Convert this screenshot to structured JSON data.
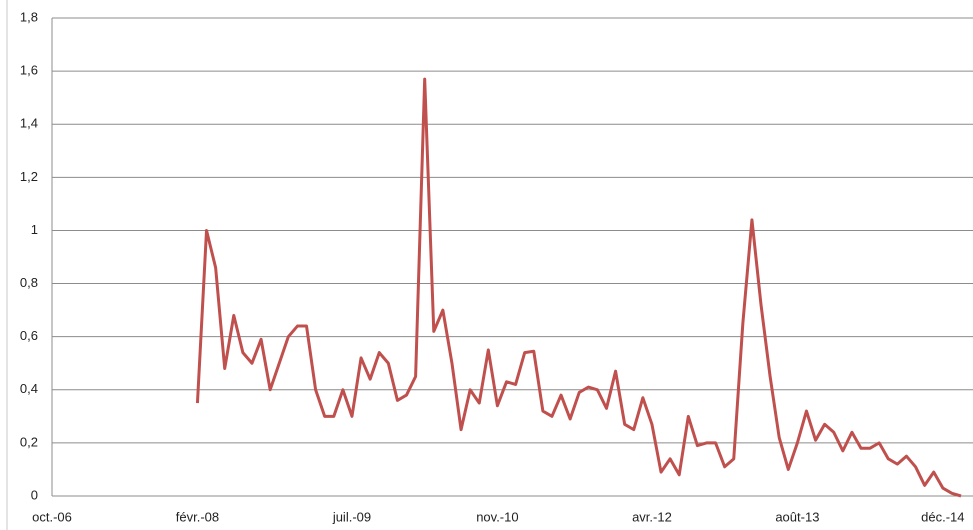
{
  "chart_data": {
    "type": "line",
    "color": "#c0504d",
    "grid": true,
    "categories": [
      "oct.-06",
      null,
      null,
      null,
      null,
      null,
      null,
      null,
      null,
      null,
      null,
      null,
      null,
      null,
      null,
      null,
      "févr.-08",
      null,
      null,
      null,
      null,
      null,
      null,
      null,
      null,
      null,
      null,
      null,
      null,
      null,
      null,
      null,
      null,
      "juil.-09",
      null,
      null,
      null,
      null,
      null,
      null,
      null,
      null,
      null,
      null,
      null,
      null,
      null,
      null,
      null,
      "nov.-10",
      null,
      null,
      null,
      null,
      null,
      null,
      null,
      null,
      null,
      null,
      null,
      null,
      null,
      null,
      null,
      null,
      "avr.-12",
      null,
      null,
      null,
      null,
      null,
      null,
      null,
      null,
      null,
      null,
      null,
      null,
      null,
      null,
      null,
      "août-13",
      null,
      null,
      null,
      null,
      null,
      null,
      null,
      null,
      null,
      null,
      null,
      null,
      null,
      null,
      null,
      "déc.-14",
      null,
      null
    ],
    "values": [
      null,
      null,
      null,
      null,
      null,
      null,
      null,
      null,
      null,
      null,
      null,
      null,
      null,
      null,
      null,
      null,
      0.35,
      1.0,
      0.86,
      0.48,
      0.68,
      0.54,
      0.5,
      0.59,
      0.4,
      0.5,
      0.6,
      0.64,
      0.64,
      0.4,
      0.3,
      0.3,
      0.4,
      0.3,
      0.52,
      0.44,
      0.54,
      0.5,
      0.36,
      0.38,
      0.45,
      1.57,
      0.62,
      0.7,
      0.5,
      0.25,
      0.4,
      0.35,
      0.55,
      0.34,
      0.43,
      0.42,
      0.54,
      0.545,
      0.32,
      0.3,
      0.38,
      0.29,
      0.39,
      0.41,
      0.4,
      0.33,
      0.47,
      0.27,
      0.25,
      0.37,
      0.27,
      0.09,
      0.14,
      0.08,
      0.3,
      0.19,
      0.2,
      0.2,
      0.11,
      0.14,
      0.65,
      1.04,
      0.72,
      0.45,
      0.22,
      0.1,
      0.2,
      0.32,
      0.21,
      0.27,
      0.24,
      0.17,
      0.24,
      0.18,
      0.18,
      0.2,
      0.14,
      0.12,
      0.15,
      0.11,
      0.04,
      0.09,
      0.03,
      0.01,
      0
    ],
    "ylim": [
      0,
      1.8
    ],
    "yticks": [
      0,
      {
        "value": 0.2,
        "label": "0,2"
      },
      {
        "value": 0.4,
        "label": "0,4"
      },
      {
        "value": 0.6,
        "label": "0,6"
      },
      {
        "value": 0.8,
        "label": "0,8"
      },
      1,
      {
        "value": 1.2,
        "label": "1,2"
      },
      {
        "value": 1.4,
        "label": "1,4"
      },
      {
        "value": 1.6,
        "label": "1,6"
      },
      {
        "value": 1.8,
        "label": "1,8"
      }
    ]
  }
}
